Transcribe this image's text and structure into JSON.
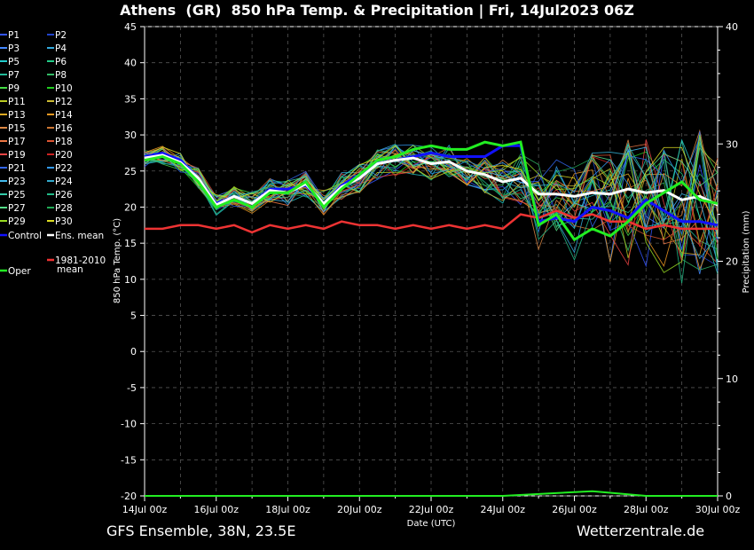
{
  "title": "Athens  (GR)  850 hPa Temp. & Precipitation | Fri, 14Jul2023 06Z",
  "footer_left": "GFS Ensemble, 38N, 23.5E",
  "footer_right": "Wetterzentrale.de",
  "chart_data": {
    "type": "line",
    "xlabel": "Date (UTC)",
    "ylabel": "850 hPa Temp. (°C)",
    "y2label": "Precipitation (mm)",
    "ylim": [
      -20,
      45
    ],
    "y2lim": [
      0,
      40
    ],
    "xlim": [
      0,
      16
    ],
    "x_unit": "days since 14Jul 00z",
    "x_ticks": [
      0,
      2,
      4,
      6,
      8,
      10,
      12,
      14,
      16
    ],
    "x_tick_labels": [
      "14Jul 00z",
      "16Jul 00z",
      "18Jul 00z",
      "20Jul 00z",
      "22Jul 00z",
      "24Jul 00z",
      "26Jul 00z",
      "28Jul 00z",
      "30Jul 00z"
    ],
    "y_ticks": [
      -20,
      -15,
      -10,
      -5,
      0,
      5,
      10,
      15,
      20,
      25,
      30,
      35,
      40,
      45
    ],
    "y2_ticks": [
      0,
      10,
      20,
      30,
      40
    ],
    "y2_tick_labels": [
      "0",
      "10",
      "20",
      "30",
      "40"
    ],
    "grid": true,
    "legend_position": "left",
    "legend": [
      {
        "label": "P1",
        "color": "#3355ff"
      },
      {
        "label": "P2",
        "color": "#2244cc"
      },
      {
        "label": "P3",
        "color": "#4488ff"
      },
      {
        "label": "P4",
        "color": "#33aadd"
      },
      {
        "label": "P5",
        "color": "#22cccc"
      },
      {
        "label": "P6",
        "color": "#22cc88"
      },
      {
        "label": "P7",
        "color": "#22bb99"
      },
      {
        "label": "P8",
        "color": "#33bb66"
      },
      {
        "label": "P9",
        "color": "#44dd44"
      },
      {
        "label": "P10",
        "color": "#22cc22"
      },
      {
        "label": "P11",
        "color": "#bbcc22"
      },
      {
        "label": "P12",
        "color": "#ccbb33"
      },
      {
        "label": "P13",
        "color": "#ddaa22"
      },
      {
        "label": "P14",
        "color": "#ee9922"
      },
      {
        "label": "P15",
        "color": "#dd8844"
      },
      {
        "label": "P16",
        "color": "#cc7733"
      },
      {
        "label": "P17",
        "color": "#ee7744"
      },
      {
        "label": "P18",
        "color": "#dd5533"
      },
      {
        "label": "P19",
        "color": "#ee4444"
      },
      {
        "label": "P20",
        "color": "#cc2222"
      },
      {
        "label": "P21",
        "color": "#3366ee"
      },
      {
        "label": "P22",
        "color": "#3399ee"
      },
      {
        "label": "P23",
        "color": "#44bbee"
      },
      {
        "label": "P24",
        "color": "#33aacc"
      },
      {
        "label": "P25",
        "color": "#33ccaa"
      },
      {
        "label": "P26",
        "color": "#22bb88"
      },
      {
        "label": "P27",
        "color": "#55dd88"
      },
      {
        "label": "P28",
        "color": "#22aa55"
      },
      {
        "label": "P29",
        "color": "#99dd22"
      },
      {
        "label": "P30",
        "color": "#dddd22"
      },
      {
        "label": "Control",
        "color": "#1111ff"
      },
      {
        "label": "Ens. mean",
        "color": "#ffffff"
      },
      {
        "label": "Oper",
        "color": "#22ee22"
      },
      {
        "label": "1981-2010\nmean",
        "color": "#ee3333"
      }
    ],
    "series": [
      {
        "name": "Control",
        "color": "#1111ff",
        "width": 3,
        "x": [
          0,
          0.5,
          1,
          1.5,
          2,
          2.5,
          3,
          3.5,
          4,
          4.5,
          5,
          5.5,
          6,
          6.5,
          7,
          7.5,
          8,
          8.5,
          9,
          9.5,
          10,
          10.5,
          11,
          11.5,
          12,
          12.5,
          13,
          13.5,
          14,
          14.5,
          15,
          15.5,
          16
        ],
        "values": [
          27,
          27.5,
          26.5,
          24,
          20.5,
          21.5,
          20.5,
          22.5,
          22.5,
          23,
          20.5,
          23,
          24.5,
          26,
          26.5,
          27,
          27.5,
          27,
          27,
          27,
          28.5,
          28.5,
          18,
          18.5,
          18,
          20,
          19.5,
          18.5,
          21,
          19.5,
          18,
          18,
          17.5
        ]
      },
      {
        "name": "Ens. mean",
        "color": "#ffffff",
        "width": 3,
        "x": [
          0,
          0.5,
          1,
          1.5,
          2,
          2.5,
          3,
          3.5,
          4,
          4.5,
          5,
          5.5,
          6,
          6.5,
          7,
          7.5,
          8,
          8.5,
          9,
          9.5,
          10,
          10.5,
          11,
          11.5,
          12,
          12.5,
          13,
          13.5,
          14,
          14.5,
          15,
          15.5,
          16
        ],
        "values": [
          26.8,
          27.2,
          26.2,
          24,
          20.3,
          21.5,
          20.5,
          22.3,
          22,
          23.2,
          20.5,
          22.8,
          24,
          26,
          26.5,
          26.8,
          26,
          26.3,
          25,
          24.5,
          23.5,
          24,
          21.8,
          21.8,
          21.5,
          22,
          21.8,
          22.5,
          22,
          22.3,
          21,
          21.5,
          20.3
        ]
      },
      {
        "name": "Oper",
        "color": "#22ee22",
        "width": 3,
        "x": [
          0,
          0.5,
          1,
          1.5,
          2,
          2.5,
          3,
          3.5,
          4,
          4.5,
          5,
          5.5,
          6,
          6.5,
          7,
          7.5,
          8,
          8.5,
          9,
          9.5,
          10,
          10.5,
          11,
          11.5,
          12,
          12.5,
          13,
          13.5,
          14,
          14.5,
          15,
          15.5,
          16
        ],
        "values": [
          26.5,
          27,
          26,
          23.5,
          20,
          21,
          20,
          22,
          22,
          23.5,
          20,
          22.5,
          24.5,
          26.5,
          27,
          28,
          28.5,
          28,
          28,
          29,
          28.5,
          29,
          17.5,
          19,
          15.5,
          17,
          16,
          18,
          20.5,
          22,
          23.5,
          21,
          20.5
        ]
      },
      {
        "name": "1981-2010\nmean",
        "color": "#ee3333",
        "width": 2.5,
        "x": [
          0,
          0.5,
          1,
          1.5,
          2,
          2.5,
          3,
          3.5,
          4,
          4.5,
          5,
          5.5,
          6,
          6.5,
          7,
          7.5,
          8,
          8.5,
          9,
          9.5,
          10,
          10.5,
          11,
          11.5,
          12,
          12.5,
          13,
          13.5,
          14,
          14.5,
          15,
          15.5,
          16
        ],
        "values": [
          17,
          17,
          17.5,
          17.5,
          17,
          17.5,
          16.5,
          17.5,
          17,
          17.5,
          17,
          18,
          17.5,
          17.5,
          17,
          17.5,
          17,
          17.5,
          17,
          17.5,
          17,
          19,
          18.5,
          19.5,
          18.5,
          19,
          18,
          18,
          17,
          17.5,
          17,
          17,
          17
        ]
      }
    ],
    "precipitation": {
      "x": [
        0,
        10,
        12.5,
        14,
        16
      ],
      "values": [
        0,
        0,
        0.4,
        0,
        0
      ]
    }
  }
}
